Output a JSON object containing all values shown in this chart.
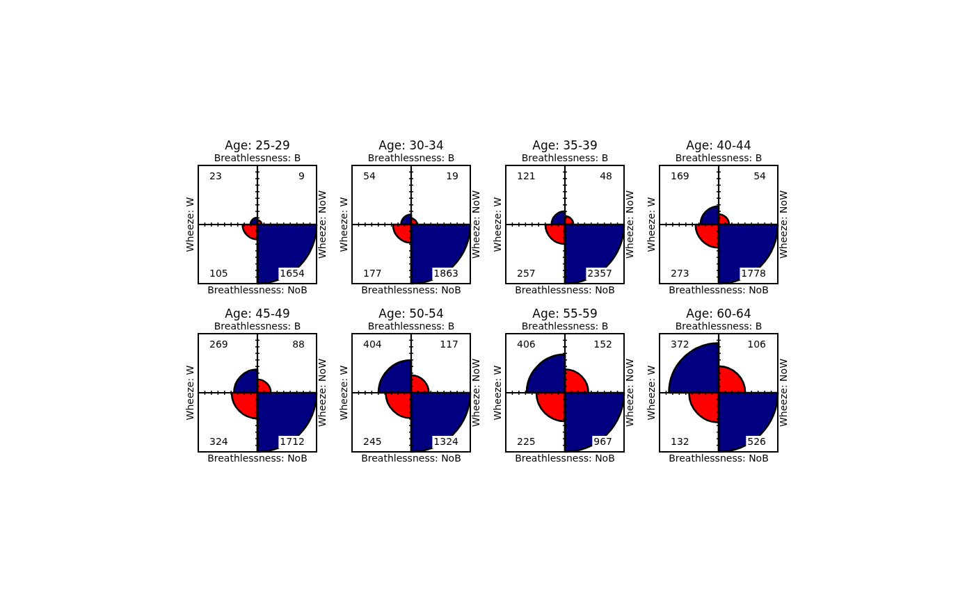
{
  "chart_data": [
    {
      "type": "other",
      "title": "Age: 25-29",
      "x2label": "Breathlessness: B",
      "xlabel": "Breathlessness: NoB",
      "ylabel": "Wheeze: W",
      "y2label": "Wheeze: NoW",
      "values": [
        23,
        9,
        105,
        1654
      ],
      "colors": [
        "#000080",
        "#ff0000",
        "#ff0000",
        "#000080"
      ],
      "data_labels": true
    },
    {
      "type": "other",
      "title": "Age: 30-34",
      "x2label": "Breathlessness: B",
      "xlabel": "Breathlessness: NoB",
      "ylabel": "Wheeze: W",
      "y2label": "Wheeze: NoW",
      "values": [
        54,
        19,
        177,
        1863
      ],
      "colors": [
        "#000080",
        "#ff0000",
        "#ff0000",
        "#000080"
      ],
      "data_labels": true
    },
    {
      "type": "other",
      "title": "Age: 35-39",
      "x2label": "Breathlessness: B",
      "xlabel": "Breathlessness: NoB",
      "ylabel": "Wheeze: W",
      "y2label": "Wheeze: NoW",
      "values": [
        121,
        48,
        257,
        2357
      ],
      "colors": [
        "#000080",
        "#ff0000",
        "#ff0000",
        "#000080"
      ],
      "data_labels": true
    },
    {
      "type": "other",
      "title": "Age: 40-44",
      "x2label": "Breathlessness: B",
      "xlabel": "Breathlessness: NoB",
      "ylabel": "Wheeze: W",
      "y2label": "Wheeze: NoW",
      "values": [
        169,
        54,
        273,
        1778
      ],
      "colors": [
        "#000080",
        "#ff0000",
        "#ff0000",
        "#000080"
      ],
      "data_labels": true
    },
    {
      "type": "other",
      "title": "Age: 45-49",
      "x2label": "Breathlessness: B",
      "xlabel": "Breathlessness: NoB",
      "ylabel": "Wheeze: W",
      "y2label": "Wheeze: NoW",
      "values": [
        269,
        88,
        324,
        1712
      ],
      "colors": [
        "#000080",
        "#ff0000",
        "#ff0000",
        "#000080"
      ],
      "data_labels": true
    },
    {
      "type": "other",
      "title": "Age: 50-54",
      "x2label": "Breathlessness: B",
      "xlabel": "Breathlessness: NoB",
      "ylabel": "Wheeze: W",
      "y2label": "Wheeze: NoW",
      "values": [
        404,
        117,
        245,
        1324
      ],
      "colors": [
        "#000080",
        "#ff0000",
        "#ff0000",
        "#000080"
      ],
      "data_labels": true
    },
    {
      "type": "other",
      "title": "Age: 55-59",
      "x2label": "Breathlessness: B",
      "xlabel": "Breathlessness: NoB",
      "ylabel": "Wheeze: W",
      "y2label": "Wheeze: NoW",
      "values": [
        406,
        152,
        225,
        967
      ],
      "colors": [
        "#000080",
        "#ff0000",
        "#ff0000",
        "#000080"
      ],
      "data_labels": true
    },
    {
      "type": "other",
      "title": "Age: 60-64",
      "x2label": "Breathlessness: B",
      "xlabel": "Breathlessness: NoB",
      "ylabel": "Wheeze: W",
      "y2label": "Wheeze: NoW",
      "values": [
        372,
        106,
        132,
        526
      ],
      "colors": [
        "#000080",
        "#ff0000",
        "#ff0000",
        "#000080"
      ],
      "data_labels": true
    }
  ]
}
